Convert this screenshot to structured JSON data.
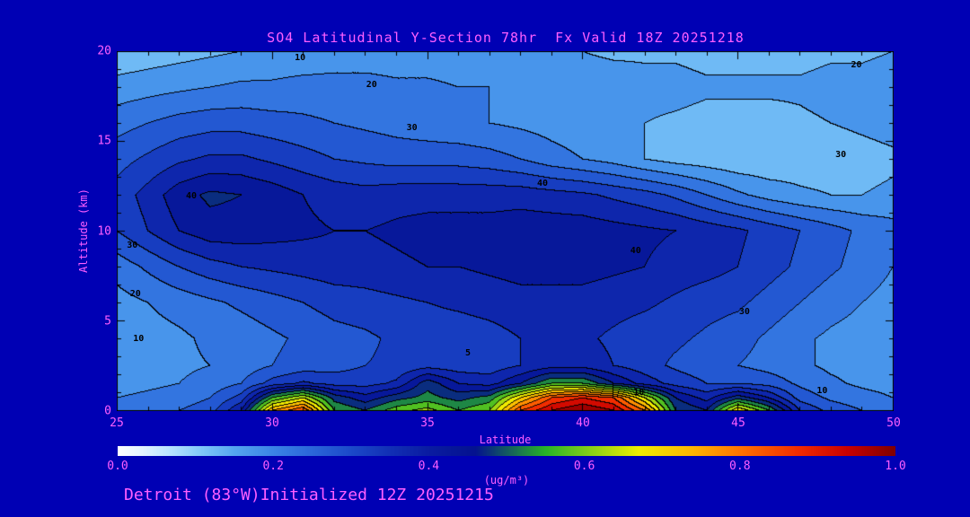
{
  "title": "SO4 Latitudinal Y-Section 78hr  Fx Valid 18Z 20251218",
  "footer": "Detroit (83°W)Initialized 12Z 20251215",
  "axes": {
    "x_label": "Latitude",
    "y_label": "Altitude (km)",
    "x_ticks": [
      "25",
      "30",
      "35",
      "40",
      "45",
      "50"
    ],
    "y_ticks": [
      "20",
      "15",
      "10",
      "5",
      "0"
    ],
    "x_range": [
      25,
      50
    ],
    "y_range": [
      0,
      20
    ]
  },
  "colorbar": {
    "label": "(ug/m³)",
    "ticks": [
      "0.0",
      "0.2",
      "0.4",
      "0.6",
      "0.8",
      "1.0"
    ],
    "range": [
      0.0,
      1.0
    ]
  },
  "colors": {
    "background": "#0000b4",
    "text": "#ff5fff",
    "contour": "#000000"
  },
  "chart_data": {
    "type": "heatmap",
    "title": "SO4 Latitudinal Y-Section 78hr  Fx Valid 18Z 20251218",
    "xlabel": "Latitude",
    "ylabel": "Altitude (km)",
    "xlim": [
      25,
      50
    ],
    "ylim": [
      0,
      20
    ],
    "colorbar_range": [
      0,
      1
    ],
    "colorbar_units": "ug/m3",
    "fill_levels_step": 0.05,
    "x": [
      25,
      26,
      27,
      28,
      29,
      30,
      31,
      32,
      33,
      34,
      35,
      36,
      37,
      38,
      39,
      40,
      41,
      42,
      43,
      44,
      45,
      46,
      47,
      48,
      49,
      50
    ],
    "y": [
      0,
      0.7,
      1.5,
      2.5,
      4,
      6,
      8,
      10,
      12,
      14,
      16,
      18,
      20
    ],
    "values": [
      [
        0.22,
        0.23,
        0.25,
        0.28,
        0.4,
        0.75,
        0.85,
        0.55,
        0.5,
        0.58,
        0.62,
        0.55,
        0.6,
        0.85,
        0.95,
        1.0,
        0.95,
        0.8,
        0.5,
        0.45,
        0.7,
        0.55,
        0.35,
        0.28,
        0.25,
        0.22
      ],
      [
        0.2,
        0.21,
        0.22,
        0.25,
        0.32,
        0.55,
        0.65,
        0.48,
        0.42,
        0.48,
        0.52,
        0.48,
        0.52,
        0.7,
        0.85,
        0.9,
        0.85,
        0.65,
        0.45,
        0.38,
        0.48,
        0.4,
        0.28,
        0.24,
        0.22,
        0.2
      ],
      [
        0.18,
        0.19,
        0.2,
        0.22,
        0.25,
        0.32,
        0.36,
        0.33,
        0.33,
        0.36,
        0.48,
        0.4,
        0.38,
        0.45,
        0.55,
        0.55,
        0.45,
        0.38,
        0.33,
        0.3,
        0.3,
        0.28,
        0.24,
        0.21,
        0.19,
        0.18
      ],
      [
        0.17,
        0.18,
        0.19,
        0.2,
        0.22,
        0.25,
        0.27,
        0.28,
        0.3,
        0.31,
        0.33,
        0.32,
        0.32,
        0.35,
        0.38,
        0.38,
        0.35,
        0.32,
        0.29,
        0.27,
        0.25,
        0.23,
        0.21,
        0.19,
        0.18,
        0.17
      ],
      [
        0.17,
        0.18,
        0.19,
        0.21,
        0.22,
        0.24,
        0.26,
        0.28,
        0.29,
        0.31,
        0.32,
        0.32,
        0.33,
        0.35,
        0.36,
        0.36,
        0.34,
        0.32,
        0.31,
        0.29,
        0.27,
        0.24,
        0.21,
        0.19,
        0.18,
        0.17
      ],
      [
        0.18,
        0.2,
        0.22,
        0.24,
        0.26,
        0.28,
        0.3,
        0.32,
        0.33,
        0.34,
        0.35,
        0.36,
        0.37,
        0.38,
        0.38,
        0.38,
        0.37,
        0.36,
        0.34,
        0.32,
        0.31,
        0.28,
        0.25,
        0.22,
        0.2,
        0.18
      ],
      [
        0.22,
        0.26,
        0.3,
        0.33,
        0.35,
        0.36,
        0.37,
        0.38,
        0.38,
        0.39,
        0.4,
        0.4,
        0.41,
        0.42,
        0.42,
        0.42,
        0.41,
        0.4,
        0.38,
        0.37,
        0.35,
        0.32,
        0.29,
        0.26,
        0.23,
        0.2
      ],
      [
        0.3,
        0.35,
        0.4,
        0.43,
        0.43,
        0.42,
        0.41,
        0.4,
        0.4,
        0.41,
        0.42,
        0.42,
        0.42,
        0.43,
        0.43,
        0.43,
        0.42,
        0.41,
        0.4,
        0.38,
        0.36,
        0.33,
        0.3,
        0.27,
        0.24,
        0.22
      ],
      [
        0.32,
        0.37,
        0.43,
        0.46,
        0.45,
        0.43,
        0.4,
        0.38,
        0.37,
        0.38,
        0.38,
        0.38,
        0.38,
        0.38,
        0.37,
        0.36,
        0.34,
        0.32,
        0.29,
        0.25,
        0.21,
        0.18,
        0.16,
        0.15,
        0.15,
        0.16
      ],
      [
        0.28,
        0.31,
        0.34,
        0.36,
        0.36,
        0.34,
        0.32,
        0.3,
        0.29,
        0.28,
        0.28,
        0.28,
        0.27,
        0.25,
        0.22,
        0.2,
        0.18,
        0.15,
        0.13,
        0.12,
        0.11,
        0.11,
        0.12,
        0.12,
        0.13,
        0.14
      ],
      [
        0.23,
        0.25,
        0.27,
        0.28,
        0.28,
        0.27,
        0.26,
        0.25,
        0.24,
        0.23,
        0.22,
        0.21,
        0.2,
        0.19,
        0.18,
        0.17,
        0.16,
        0.15,
        0.14,
        0.13,
        0.13,
        0.13,
        0.14,
        0.15,
        0.16,
        0.17
      ],
      [
        0.17,
        0.18,
        0.19,
        0.2,
        0.21,
        0.21,
        0.22,
        0.22,
        0.22,
        0.21,
        0.21,
        0.2,
        0.2,
        0.19,
        0.19,
        0.18,
        0.18,
        0.17,
        0.17,
        0.16,
        0.16,
        0.16,
        0.16,
        0.17,
        0.17,
        0.18
      ],
      [
        0.11,
        0.12,
        0.13,
        0.14,
        0.15,
        0.16,
        0.16,
        0.17,
        0.17,
        0.17,
        0.17,
        0.17,
        0.16,
        0.16,
        0.15,
        0.15,
        0.14,
        0.14,
        0.14,
        0.13,
        0.13,
        0.13,
        0.13,
        0.14,
        0.14,
        0.15
      ]
    ],
    "colormap_stops": [
      [
        0.0,
        "#ffffff"
      ],
      [
        0.03,
        "#e6f5ff"
      ],
      [
        0.07,
        "#b4e2ff"
      ],
      [
        0.11,
        "#7ec6f8"
      ],
      [
        0.15,
        "#55a6f0"
      ],
      [
        0.2,
        "#3b84e6"
      ],
      [
        0.25,
        "#2b66da"
      ],
      [
        0.3,
        "#1c4aca"
      ],
      [
        0.35,
        "#1230b6"
      ],
      [
        0.4,
        "#0a1ca2"
      ],
      [
        0.46,
        "#041290"
      ],
      [
        0.55,
        "#28b428"
      ],
      [
        0.62,
        "#9cd614"
      ],
      [
        0.67,
        "#f0ee00"
      ],
      [
        0.74,
        "#ffb400"
      ],
      [
        0.81,
        "#ff6a00"
      ],
      [
        0.88,
        "#f02800"
      ],
      [
        0.94,
        "#c80000"
      ],
      [
        1.0,
        "#800000"
      ]
    ],
    "contour_labels": [
      {
        "text": "10",
        "lat": 30.9,
        "alt": 19.6
      },
      {
        "text": "20",
        "lat": 33.2,
        "alt": 18.1
      },
      {
        "text": "30",
        "lat": 34.5,
        "alt": 15.7
      },
      {
        "text": "40",
        "lat": 27.4,
        "alt": 11.9
      },
      {
        "text": "30",
        "lat": 25.5,
        "alt": 9.2
      },
      {
        "text": "20",
        "lat": 25.6,
        "alt": 6.5
      },
      {
        "text": "10",
        "lat": 25.7,
        "alt": 4.0
      },
      {
        "text": "40",
        "lat": 38.7,
        "alt": 12.6
      },
      {
        "text": "40",
        "lat": 41.7,
        "alt": 8.9
      },
      {
        "text": "30",
        "lat": 48.3,
        "alt": 14.2
      },
      {
        "text": "20",
        "lat": 48.8,
        "alt": 19.2
      },
      {
        "text": "30",
        "lat": 45.2,
        "alt": 5.5
      },
      {
        "text": "10",
        "lat": 47.7,
        "alt": 1.1
      },
      {
        "text": "10",
        "lat": 41.8,
        "alt": 1.0
      },
      {
        "text": "5",
        "lat": 36.3,
        "alt": 3.2
      }
    ]
  }
}
